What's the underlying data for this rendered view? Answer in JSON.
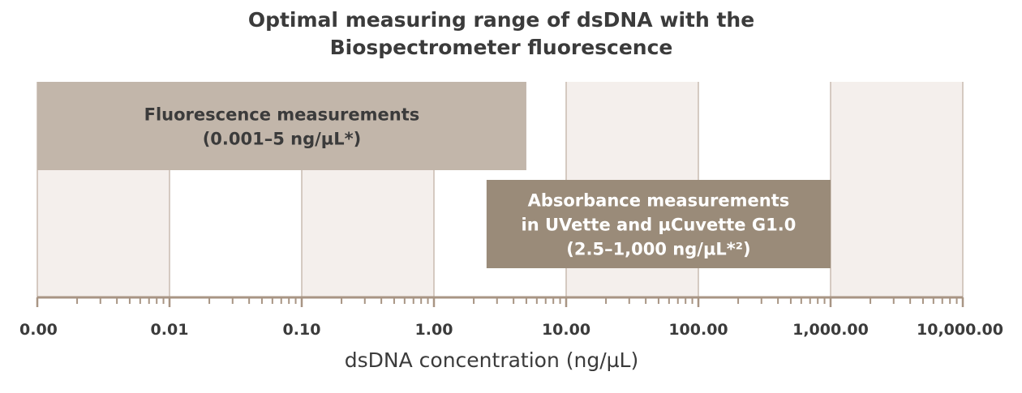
{
  "chart_data": {
    "type": "range",
    "title_lines": [
      "Optimal measuring range of dsDNA with the",
      "Biospectrometer fluorescence"
    ],
    "xlabel": "dsDNA concentration (ng/µL)",
    "x_scale": "log",
    "x_ticks": [
      "0.00",
      "0.01",
      "0.10",
      "1.00",
      "10.00",
      "100.00",
      "1,000.00",
      "10,000.00"
    ],
    "x_tick_values": [
      0.001,
      0.01,
      0.1,
      1,
      10,
      100,
      1000,
      10000
    ],
    "xlim": [
      0.001,
      10000
    ],
    "ranges": [
      {
        "label_lines": [
          "Fluorescence measurements",
          "(0.001–5 ng/µL*)"
        ],
        "start": 0.001,
        "end": 5,
        "color": "#c2b6aa",
        "text_color": "#3b3b3b",
        "row": "top"
      },
      {
        "label_lines": [
          "Absorbance measurements",
          "in UVette and µCuvette G1.0",
          "(2.5–1,000 ng/µL*²)"
        ],
        "start": 2.5,
        "end": 1000,
        "color": "#9a8b79",
        "text_color": "#ffffff",
        "row": "bottom"
      }
    ],
    "band_colors": [
      "#f4efec",
      "#ffffff"
    ],
    "axis_color": "#a89584"
  }
}
